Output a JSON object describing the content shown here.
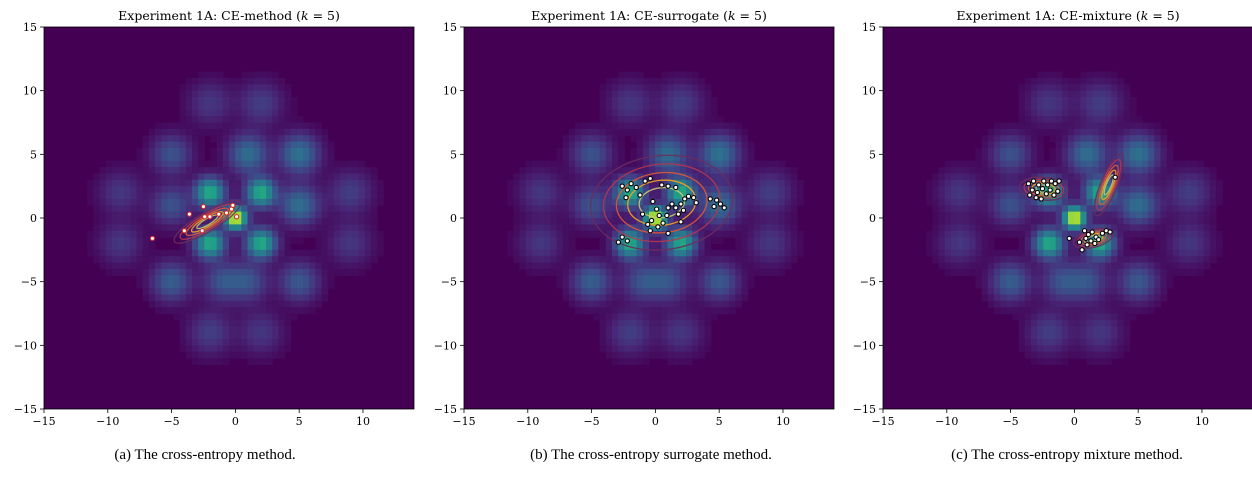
{
  "colors": {
    "background_low": "#440154",
    "background_mid": "#21918c",
    "background_high": "#fde725",
    "sample_fill": "#ffffff",
    "sample_edge_method": "#d62728",
    "sample_edge_surrogate": "#000000",
    "sample_edge_mixture": "#000000",
    "contour_colors": [
      "#6b2d5c",
      "#b5364f",
      "#e35932",
      "#f7a21b",
      "#c8c86b"
    ]
  },
  "peaks": [
    {
      "x": 0,
      "y": 0,
      "weight": 1.0,
      "width": 0.55
    },
    {
      "x": 2,
      "y": 2,
      "weight": 0.55,
      "width": 0.75
    },
    {
      "x": -2,
      "y": 2,
      "weight": 0.55,
      "width": 0.75
    },
    {
      "x": 2,
      "y": -2,
      "weight": 0.55,
      "width": 0.75
    },
    {
      "x": -2,
      "y": -2,
      "weight": 0.55,
      "width": 0.75
    },
    {
      "x": 1,
      "y": 5,
      "weight": 0.28,
      "width": 1.0
    },
    {
      "x": 5,
      "y": 5,
      "weight": 0.3,
      "width": 1.0
    },
    {
      "x": 5,
      "y": 1,
      "weight": 0.28,
      "width": 1.0
    },
    {
      "x": -5,
      "y": 5,
      "weight": 0.18,
      "width": 1.0
    },
    {
      "x": -5,
      "y": 1,
      "weight": 0.18,
      "width": 1.0
    },
    {
      "x": 5,
      "y": -5,
      "weight": 0.2,
      "width": 1.0
    },
    {
      "x": -5,
      "y": -5,
      "weight": 0.22,
      "width": 1.0
    },
    {
      "x": 1,
      "y": -5,
      "weight": 0.18,
      "width": 1.0
    },
    {
      "x": -1,
      "y": -5,
      "weight": 0.18,
      "width": 1.0
    },
    {
      "x": -9,
      "y": 2,
      "weight": 0.1,
      "width": 1.1
    },
    {
      "x": 9,
      "y": 2,
      "weight": 0.12,
      "width": 1.1
    },
    {
      "x": 9,
      "y": -2,
      "weight": 0.1,
      "width": 1.1
    },
    {
      "x": -9,
      "y": -2,
      "weight": 0.1,
      "width": 1.1
    },
    {
      "x": 2,
      "y": 9,
      "weight": 0.12,
      "width": 1.1
    },
    {
      "x": -2,
      "y": 9,
      "weight": 0.1,
      "width": 1.1
    },
    {
      "x": 2,
      "y": -9,
      "weight": 0.1,
      "width": 1.1
    },
    {
      "x": -2,
      "y": -9,
      "weight": 0.12,
      "width": 1.1
    }
  ],
  "chart_data": [
    {
      "type": "scatter",
      "title": "Experiment 1A: CE-method (k = 5)",
      "title_prefix": "Experiment 1A: CE-method (",
      "title_var": "k",
      "title_suffix": " = 5)",
      "xlim": [
        -15,
        14
      ],
      "ylim": [
        -15,
        15
      ],
      "xticks": [
        -15,
        -10,
        -5,
        0,
        5,
        10
      ],
      "yticks": [
        -15,
        -10,
        -5,
        0,
        5,
        10,
        15
      ],
      "grid": false,
      "caption": "(a) The cross-entropy method.",
      "points": [
        {
          "x": -6.5,
          "y": -1.6
        },
        {
          "x": -4.0,
          "y": -1.0
        },
        {
          "x": -3.6,
          "y": 0.3
        },
        {
          "x": -2.6,
          "y": -1.0
        },
        {
          "x": -2.5,
          "y": 0.9
        },
        {
          "x": -2.4,
          "y": 0.1
        },
        {
          "x": -2.0,
          "y": 0.1
        },
        {
          "x": -1.3,
          "y": 0.3
        },
        {
          "x": -0.7,
          "y": 0.4
        },
        {
          "x": -0.3,
          "y": 0.7
        },
        {
          "x": -0.2,
          "y": 1.0
        },
        {
          "x": 0.1,
          "y": 0.1
        }
      ],
      "distributions": [
        {
          "mean": [
            -2.2,
            -0.3
          ],
          "sx": 3.0,
          "sy": 0.75,
          "angle": 31,
          "weight": 1.0
        }
      ]
    },
    {
      "type": "scatter",
      "title": "Experiment 1A: CE-surrogate (k = 5)",
      "title_prefix": "Experiment 1A: CE-surrogate (",
      "title_var": "k",
      "title_suffix": " = 5)",
      "xlim": [
        -15,
        14
      ],
      "ylim": [
        -15,
        15
      ],
      "xticks": [
        -15,
        -10,
        -5,
        0,
        5,
        10
      ],
      "yticks": [
        -15,
        -10,
        -5,
        0,
        5,
        10,
        15
      ],
      "grid": false,
      "caption": "(b) The cross-entropy surrogate method.",
      "points": [
        {
          "x": -2.6,
          "y": 2.5
        },
        {
          "x": -2.2,
          "y": 2.2
        },
        {
          "x": -1.9,
          "y": 2.7
        },
        {
          "x": -1.5,
          "y": 2.4
        },
        {
          "x": -2.3,
          "y": 1.6
        },
        {
          "x": -1.2,
          "y": 1.8
        },
        {
          "x": -0.8,
          "y": 2.9
        },
        {
          "x": -0.4,
          "y": 3.1
        },
        {
          "x": 0.5,
          "y": 2.6
        },
        {
          "x": 1.0,
          "y": 2.5
        },
        {
          "x": 1.6,
          "y": 2.4
        },
        {
          "x": -0.2,
          "y": 1.3
        },
        {
          "x": 0.1,
          "y": 0.7
        },
        {
          "x": 0.3,
          "y": 0.2
        },
        {
          "x": -0.3,
          "y": -0.2
        },
        {
          "x": 0.6,
          "y": -0.4
        },
        {
          "x": -0.6,
          "y": -0.5
        },
        {
          "x": 0.2,
          "y": -0.7
        },
        {
          "x": -0.4,
          "y": -1.0
        },
        {
          "x": 1.0,
          "y": 0.8
        },
        {
          "x": 1.3,
          "y": 1.1
        },
        {
          "x": 1.6,
          "y": 0.8
        },
        {
          "x": 2.0,
          "y": 1.1
        },
        {
          "x": 2.3,
          "y": 1.5
        },
        {
          "x": 2.6,
          "y": 1.7
        },
        {
          "x": 3.0,
          "y": 1.6
        },
        {
          "x": 2.2,
          "y": 0.6
        },
        {
          "x": 1.8,
          "y": 0.3
        },
        {
          "x": 3.2,
          "y": 1.2
        },
        {
          "x": 4.3,
          "y": 1.5
        },
        {
          "x": 4.8,
          "y": 1.4
        },
        {
          "x": 5.1,
          "y": 1.1
        },
        {
          "x": 5.4,
          "y": 0.8
        },
        {
          "x": 4.6,
          "y": 0.9
        },
        {
          "x": 2.0,
          "y": -0.3
        },
        {
          "x": 1.0,
          "y": -1.2
        },
        {
          "x": -2.6,
          "y": -1.5
        },
        {
          "x": -2.9,
          "y": -1.9
        },
        {
          "x": -2.2,
          "y": -1.8
        },
        {
          "x": 0.9,
          "y": 0.2
        },
        {
          "x": -1.0,
          "y": 0.3
        }
      ],
      "distributions": [
        {
          "mean": [
            0.5,
            1.2
          ],
          "sx": 5.6,
          "sy": 3.7,
          "angle": 6,
          "weight": 1.0
        }
      ]
    },
    {
      "type": "scatter",
      "title": "Experiment 1A: CE-mixture (k = 5)",
      "title_prefix": "Experiment 1A: CE-mixture (",
      "title_var": "k",
      "title_suffix": " = 5)",
      "xlim": [
        -15,
        14
      ],
      "ylim": [
        -15,
        15
      ],
      "xticks": [
        -15,
        -10,
        -5,
        0,
        5,
        10
      ],
      "yticks": [
        -15,
        -10,
        -5,
        0,
        5,
        10,
        15
      ],
      "grid": false,
      "caption": "(c) The cross-entropy mixture method.",
      "points": [
        {
          "x": -3.6,
          "y": 2.7
        },
        {
          "x": -3.2,
          "y": 2.9
        },
        {
          "x": -2.8,
          "y": 2.6
        },
        {
          "x": -2.4,
          "y": 2.9
        },
        {
          "x": -2.1,
          "y": 2.6
        },
        {
          "x": -1.8,
          "y": 2.9
        },
        {
          "x": -1.5,
          "y": 2.7
        },
        {
          "x": -1.2,
          "y": 2.9
        },
        {
          "x": -3.3,
          "y": 2.2
        },
        {
          "x": -2.9,
          "y": 2.0
        },
        {
          "x": -2.5,
          "y": 2.3
        },
        {
          "x": -2.2,
          "y": 1.9
        },
        {
          "x": -1.9,
          "y": 2.2
        },
        {
          "x": -1.6,
          "y": 1.8
        },
        {
          "x": -1.3,
          "y": 2.1
        },
        {
          "x": -3.0,
          "y": 1.6
        },
        {
          "x": -2.6,
          "y": 1.5
        },
        {
          "x": -3.5,
          "y": 1.8
        },
        {
          "x": 3.2,
          "y": 3.2
        },
        {
          "x": 0.8,
          "y": -1.0
        },
        {
          "x": 1.1,
          "y": -1.3
        },
        {
          "x": 1.4,
          "y": -1.1
        },
        {
          "x": 1.7,
          "y": -1.5
        },
        {
          "x": 0.9,
          "y": -1.6
        },
        {
          "x": 1.3,
          "y": -1.8
        },
        {
          "x": 1.6,
          "y": -2.0
        },
        {
          "x": 1.0,
          "y": -2.1
        },
        {
          "x": 2.2,
          "y": -1.2
        },
        {
          "x": 2.5,
          "y": -1.0
        },
        {
          "x": 2.8,
          "y": -1.1
        },
        {
          "x": 0.4,
          "y": -1.9
        },
        {
          "x": 0.6,
          "y": -2.5
        },
        {
          "x": -0.4,
          "y": -1.6
        },
        {
          "x": 1.9,
          "y": -1.7
        }
      ],
      "distributions": [
        {
          "mean": [
            -2.4,
            2.3
          ],
          "sx": 1.9,
          "sy": 0.9,
          "angle": -5,
          "weight": 0.5
        },
        {
          "mean": [
            1.5,
            -1.6
          ],
          "sx": 1.6,
          "sy": 0.7,
          "angle": 15,
          "weight": 0.35
        },
        {
          "mean": [
            2.7,
            2.6
          ],
          "sx": 2.6,
          "sy": 0.65,
          "angle": 68,
          "weight": 0.25
        }
      ]
    }
  ]
}
